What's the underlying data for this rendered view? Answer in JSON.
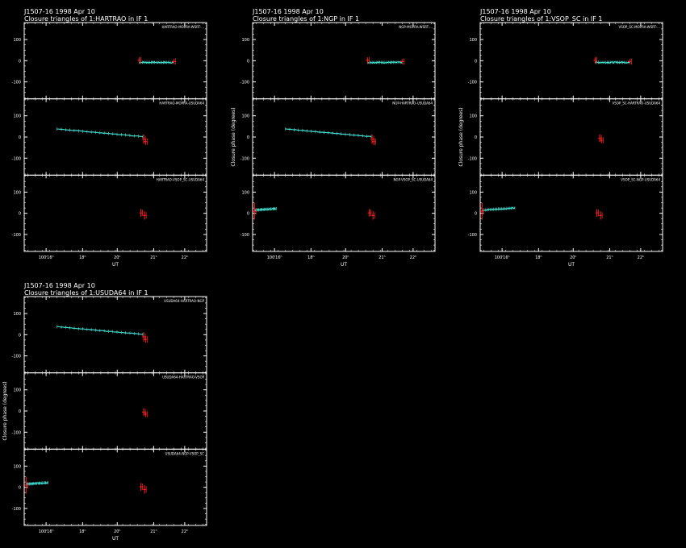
{
  "colors": {
    "background": "#000000",
    "axes": "#ffffff",
    "model": "#40e0d0",
    "data": "#ff2020"
  },
  "chart_data": [
    {
      "type": "scatter",
      "header": "J1507-16   1998 Apr 10",
      "title": "Closure triangles of 1:HARTRAO in IF 1",
      "xlabel": "UT",
      "ylabel": "",
      "x_tick_labels": [
        "100ⁱ16ʰ",
        "18ʰ",
        "20ʰ",
        "21ʰ",
        "22ʰ"
      ],
      "panels": [
        {
          "label": "HARTRAO-MOPRA-WSRT-...",
          "y_ticks": [
            "100",
            "0",
            "-100"
          ],
          "ylim": [
            -180,
            180
          ],
          "model_segments": [
            {
              "x": [
                0.63,
                0.82
              ],
              "y": [
                -8,
                -8
              ],
              "jitter": 6
            }
          ],
          "data_points": [
            {
              "x": 0.63,
              "y": 2,
              "err": 14
            },
            {
              "x": 0.82,
              "y": -4,
              "err": 12
            }
          ]
        },
        {
          "label": "HARTRAO-MOPRA-USUDA64",
          "y_ticks": [
            "100",
            "0",
            "-100"
          ],
          "ylim": [
            -180,
            180
          ],
          "model_segments": [
            {
              "x": [
                0.18,
                0.65
              ],
              "y": [
                38,
                2
              ],
              "jitter": 2
            }
          ],
          "data_points": [
            {
              "x": 0.655,
              "y": -10,
              "err": 22
            },
            {
              "x": 0.665,
              "y": -22,
              "err": 16
            }
          ]
        },
        {
          "label": "HARTRAO-VSOP_SC-USUDA64",
          "y_ticks": [
            "100",
            "0",
            "-100"
          ],
          "ylim": [
            -180,
            180
          ],
          "model_segments": [],
          "data_points": [
            {
              "x": 0.64,
              "y": 2,
              "err": 18
            },
            {
              "x": 0.66,
              "y": -10,
              "err": 20
            }
          ]
        }
      ]
    },
    {
      "type": "scatter",
      "header": "J1507-16   1998 Apr 10",
      "title": "Closure triangles of 1:NGP in IF 1",
      "xlabel": "UT",
      "ylabel": "Closure phase   (degrees)",
      "x_tick_labels": [
        "100ⁱ16ʰ",
        "18ʰ",
        "20ʰ",
        "21ʰ",
        "22ʰ"
      ],
      "panels": [
        {
          "label": "NGP-MOPRA-WSRT-...",
          "y_ticks": [
            "100",
            "0",
            "-100"
          ],
          "ylim": [
            -180,
            180
          ],
          "model_segments": [
            {
              "x": [
                0.63,
                0.82
              ],
              "y": [
                -8,
                -8
              ],
              "jitter": 6
            }
          ],
          "data_points": [
            {
              "x": 0.63,
              "y": 2,
              "err": 14
            },
            {
              "x": 0.82,
              "y": -4,
              "err": 12
            }
          ]
        },
        {
          "label": "NGP-HARTRAO-USUDA64",
          "y_ticks": [
            "100",
            "0",
            "-100"
          ],
          "ylim": [
            -180,
            180
          ],
          "model_segments": [
            {
              "x": [
                0.18,
                0.65
              ],
              "y": [
                38,
                2
              ],
              "jitter": 2
            }
          ],
          "data_points": [
            {
              "x": 0.655,
              "y": -10,
              "err": 22
            },
            {
              "x": 0.665,
              "y": -22,
              "err": 16
            }
          ]
        },
        {
          "label": "NGP-VSOP_SC-USUDA64",
          "y_ticks": [
            "100",
            "0",
            "-100"
          ],
          "ylim": [
            -180,
            180
          ],
          "model_segments": [
            {
              "x": [
                0.01,
                0.13
              ],
              "y": [
                15,
                22
              ],
              "jitter": 5
            }
          ],
          "data_points": [
            {
              "x": 0.01,
              "y": 10,
              "err": 40
            },
            {
              "x": 0.64,
              "y": 2,
              "err": 18
            },
            {
              "x": 0.66,
              "y": -10,
              "err": 20
            }
          ]
        }
      ]
    },
    {
      "type": "scatter",
      "header": "J1507-16   1998 Apr 10",
      "title": "Closure triangles of 1:VSOP_SC in IF 1",
      "xlabel": "UT",
      "ylabel": "Closure phase   (degrees)",
      "x_tick_labels": [
        "100ⁱ16ʰ",
        "18ʰ",
        "20ʰ",
        "21ʰ",
        "22ʰ"
      ],
      "panels": [
        {
          "label": "VSOP_SC-MOPRA-WSRT-...",
          "y_ticks": [
            "100",
            "0",
            "-100"
          ],
          "ylim": [
            -180,
            180
          ],
          "model_segments": [
            {
              "x": [
                0.63,
                0.82
              ],
              "y": [
                -8,
                -8
              ],
              "jitter": 6
            }
          ],
          "data_points": [
            {
              "x": 0.63,
              "y": 2,
              "err": 14
            },
            {
              "x": 0.82,
              "y": -4,
              "err": 12
            }
          ]
        },
        {
          "label": "VSOP_SC-HARTRAO-USUDA64",
          "y_ticks": [
            "100",
            "0",
            "-100"
          ],
          "ylim": [
            -180,
            180
          ],
          "model_segments": [],
          "data_points": [
            {
              "x": 0.655,
              "y": -5,
              "err": 18
            },
            {
              "x": 0.665,
              "y": -15,
              "err": 14
            }
          ]
        },
        {
          "label": "VSOP_SC-NGP-USUDA64",
          "y_ticks": [
            "100",
            "0",
            "-100"
          ],
          "ylim": [
            -180,
            180
          ],
          "model_segments": [
            {
              "x": [
                0.01,
                0.19
              ],
              "y": [
                15,
                25
              ],
              "jitter": 5
            }
          ],
          "data_points": [
            {
              "x": 0.01,
              "y": 10,
              "err": 40
            },
            {
              "x": 0.64,
              "y": 2,
              "err": 18
            },
            {
              "x": 0.66,
              "y": -10,
              "err": 20
            }
          ]
        }
      ]
    },
    {
      "type": "scatter",
      "header": "J1507-16   1998 Apr 10",
      "title": "Closure triangles of 1:USUDA64 in IF 1",
      "xlabel": "UT",
      "ylabel": "Closure phase   (degrees)",
      "x_tick_labels": [
        "100ⁱ16ʰ",
        "18ʰ",
        "20ʰ",
        "21ʰ",
        "22ʰ"
      ],
      "panels": [
        {
          "label": "USUDA64-HARTRAO-NGP",
          "y_ticks": [
            "100",
            "0",
            "-100"
          ],
          "ylim": [
            -180,
            180
          ],
          "model_segments": [
            {
              "x": [
                0.18,
                0.65
              ],
              "y": [
                38,
                2
              ],
              "jitter": 2
            }
          ],
          "data_points": [
            {
              "x": 0.655,
              "y": -10,
              "err": 22
            },
            {
              "x": 0.665,
              "y": -22,
              "err": 16
            }
          ]
        },
        {
          "label": "USUDA64-HARTRAO-VSOP",
          "y_ticks": [
            "100",
            "0",
            "-100"
          ],
          "ylim": [
            -180,
            180
          ],
          "model_segments": [],
          "data_points": [
            {
              "x": 0.655,
              "y": -5,
              "err": 18
            },
            {
              "x": 0.665,
              "y": -15,
              "err": 14
            }
          ]
        },
        {
          "label": "USUDA64-NGP-VSOP_SC",
          "y_ticks": [
            "100",
            "0",
            "-100"
          ],
          "ylim": [
            -180,
            180
          ],
          "model_segments": [
            {
              "x": [
                0.01,
                0.13
              ],
              "y": [
                15,
                22
              ],
              "jitter": 5
            }
          ],
          "data_points": [
            {
              "x": 0.01,
              "y": 10,
              "err": 40
            },
            {
              "x": 0.64,
              "y": 2,
              "err": 18
            },
            {
              "x": 0.66,
              "y": -10,
              "err": 20
            }
          ]
        }
      ]
    }
  ]
}
